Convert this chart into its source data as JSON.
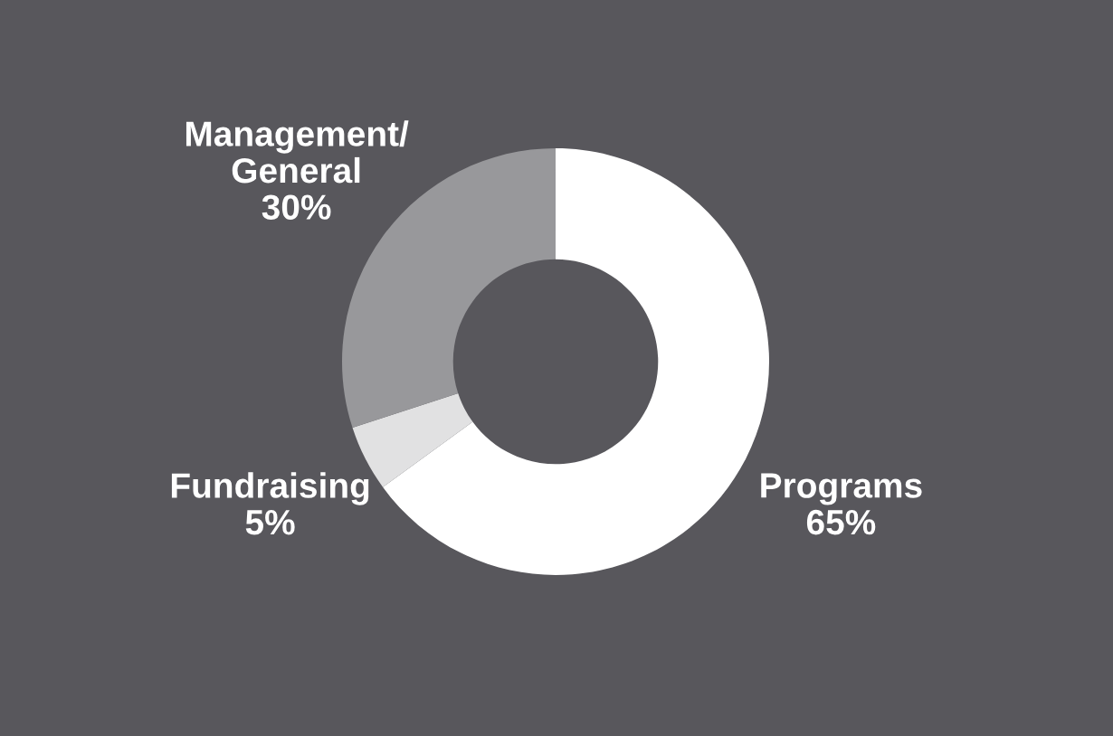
{
  "chart_data": {
    "type": "donut",
    "categories": [
      "Programs",
      "Fundraising",
      "Management/\nGeneral"
    ],
    "values": [
      65,
      5,
      30
    ],
    "value_labels": [
      "65%",
      "5%",
      "30%"
    ],
    "colors": [
      "#ffffff",
      "#e1e1e2",
      "#98989b"
    ],
    "legend": false
  }
}
